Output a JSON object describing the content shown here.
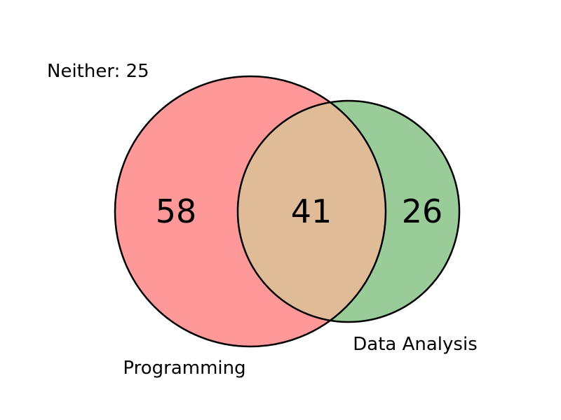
{
  "chart_data": {
    "type": "venn",
    "sets": [
      {
        "name": "Programming",
        "only": 58,
        "color": "#ff9999"
      },
      {
        "name": "Data Analysis",
        "only": 26,
        "color": "#99cc99"
      }
    ],
    "intersection": 41,
    "intersection_color": "#dfbb98",
    "neither": {
      "label": "Neither: 25",
      "value": 25
    }
  }
}
